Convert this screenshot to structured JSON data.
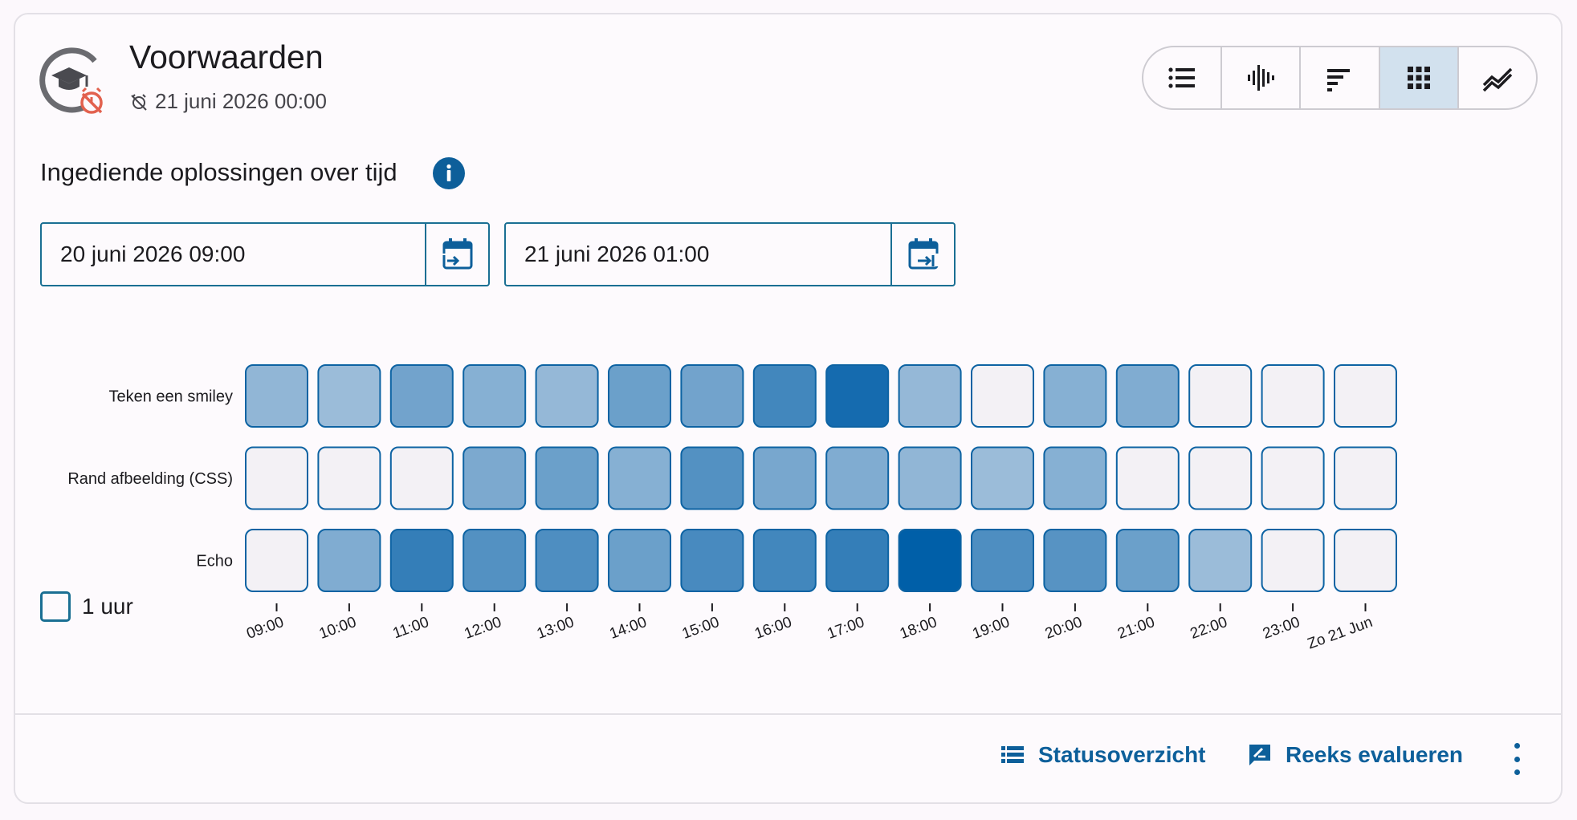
{
  "header": {
    "title": "Voorwaarden",
    "deadline": "21 juni 2026 00:00"
  },
  "view_toggle": {
    "options": [
      "list-icon",
      "waveform-icon",
      "stacked-bars-icon",
      "grid-icon",
      "trend-lines-icon"
    ],
    "active_index": 3
  },
  "section": {
    "title": "Ingediende oplossingen over tijd"
  },
  "date_range": {
    "start": "20 juni 2026 09:00",
    "end": "21 juni 2026 01:00"
  },
  "options": {
    "hour_toggle_label": "1 uur",
    "hour_toggle_checked": false
  },
  "colors": {
    "accent": "#0d5f9a",
    "cell_empty": "#f3f1f5",
    "cell_max": "#005fa8"
  },
  "chart_data": {
    "type": "heatmap",
    "rows": [
      "Teken een smiley",
      "Rand afbeelding (CSS)",
      "Echo"
    ],
    "x": [
      "09:00",
      "10:00",
      "11:00",
      "12:00",
      "13:00",
      "14:00",
      "15:00",
      "16:00",
      "17:00",
      "18:00",
      "19:00",
      "20:00",
      "21:00",
      "22:00",
      "23:00",
      "Zo 21 Jun"
    ],
    "intensity": [
      [
        0.3,
        0.25,
        0.45,
        0.35,
        0.28,
        0.48,
        0.45,
        0.68,
        0.9,
        0.28,
        0.0,
        0.35,
        0.38,
        0.0,
        0.0,
        0.0
      ],
      [
        0.0,
        0.0,
        0.0,
        0.4,
        0.48,
        0.35,
        0.6,
        0.42,
        0.38,
        0.3,
        0.25,
        0.35,
        0.0,
        0.0,
        0.0,
        0.0
      ],
      [
        0.0,
        0.38,
        0.75,
        0.6,
        0.62,
        0.48,
        0.65,
        0.68,
        0.75,
        1.0,
        0.62,
        0.58,
        0.48,
        0.25,
        0.0,
        0.0
      ]
    ]
  },
  "footer": {
    "status_label": "Statusoverzicht",
    "evaluate_label": "Reeks evalueren"
  }
}
